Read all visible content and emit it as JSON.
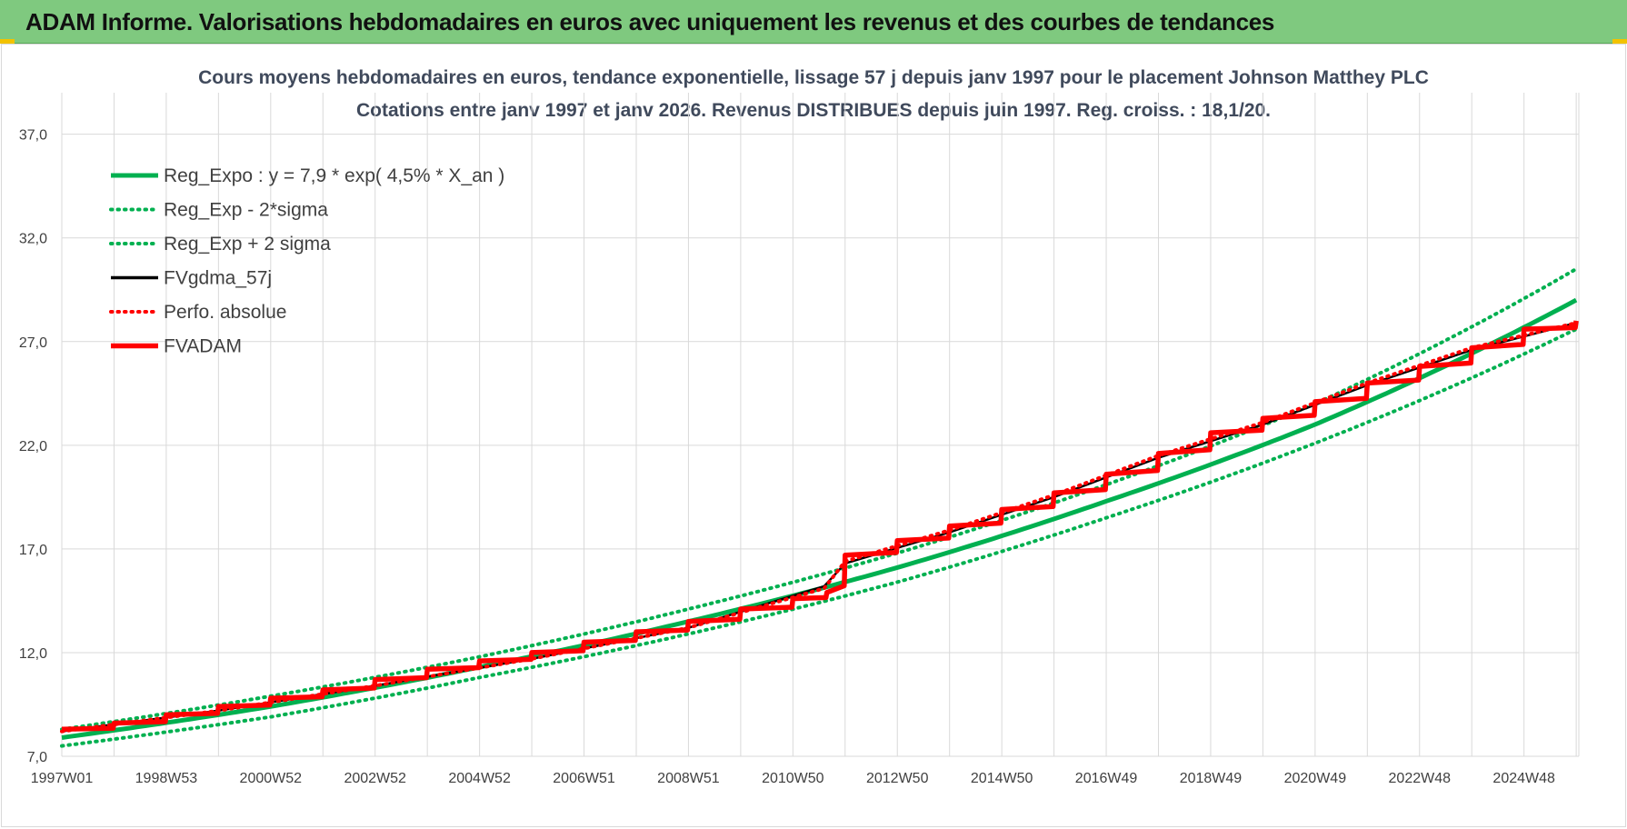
{
  "header": {
    "title": "ADAM Informe. Valorisations hebdomadaires en euros avec uniquement les revenus et des courbes de tendances"
  },
  "colors": {
    "banner": "#7fc97f",
    "green": "#00b050",
    "black": "#000000",
    "red": "#ff0000",
    "grid": "#d9d9d9"
  },
  "chart_data": {
    "type": "line",
    "title_line1": "Cours moyens hebdomadaires en euros, tendance exponentielle, lissage 57 j depuis janv 1997  pour le  placement Johnson Matthey PLC",
    "title_line2": "Cotations entre janv 1997 et janv 2026. Revenus DISTRIBUES depuis juin 1997. Reg. croiss. : 18,1/20.",
    "xlabel": "",
    "ylabel": "",
    "ylim": [
      7,
      39
    ],
    "y_ticks": [
      "7,0",
      "12,0",
      "17,0",
      "22,0",
      "27,0",
      "32,0",
      "37,0"
    ],
    "x_ticks": [
      "1997W01",
      "1998W53",
      "2000W52",
      "2002W52",
      "2004W52",
      "2006W51",
      "2008W51",
      "2010W50",
      "2012W50",
      "2014W50",
      "2016W49",
      "2018W49",
      "2020W49",
      "2022W48",
      "2024W48"
    ],
    "x_tick_years": [
      1997.0,
      1999.0,
      2001.0,
      2003.0,
      2005.0,
      2007.0,
      2009.0,
      2011.0,
      2013.0,
      2015.0,
      2017.0,
      2019.0,
      2021.0,
      2023.0,
      2025.0
    ],
    "xlim": [
      1997.0,
      2026.05
    ],
    "grid": true,
    "legend_position": "top-left",
    "series": [
      {
        "name": "Reg_Expo : y = 7,9 * exp( 4,5% *  X_an )",
        "style": "solid",
        "color": "#00b050",
        "x": [
          1997,
          2001,
          2005,
          2009,
          2013,
          2017,
          2021,
          2026
        ],
        "y": [
          7.9,
          9.4,
          11.3,
          13.5,
          16.1,
          19.3,
          23.0,
          29.0
        ]
      },
      {
        "name": "Reg_Exp - 2*sigma",
        "style": "dotted",
        "color": "#00b050",
        "x": [
          1997,
          2001,
          2005,
          2009,
          2013,
          2017,
          2021,
          2026
        ],
        "y": [
          7.5,
          8.9,
          10.8,
          12.9,
          15.4,
          18.5,
          22.1,
          27.6
        ]
      },
      {
        "name": "Reg_Exp + 2 sigma",
        "style": "dotted",
        "color": "#00b050",
        "x": [
          1997,
          2001,
          2005,
          2009,
          2013,
          2017,
          2021,
          2026
        ],
        "y": [
          8.3,
          9.9,
          11.8,
          14.1,
          16.8,
          20.1,
          24.0,
          30.5
        ]
      },
      {
        "name": "FVgdma_57j",
        "style": "solid",
        "color": "#000000",
        "x": [
          1997,
          2000,
          2003,
          2006,
          2009,
          2011.6,
          2012,
          2014,
          2016,
          2018,
          2020,
          2022,
          2024,
          2026
        ],
        "y": [
          8.2,
          9.2,
          10.4,
          11.7,
          13.2,
          15.2,
          16.3,
          17.8,
          19.5,
          21.4,
          23.0,
          24.9,
          26.6,
          27.9
        ]
      },
      {
        "name": "Perfo. absolue",
        "style": "dotted",
        "color": "#ff0000",
        "x": [
          1997,
          2000,
          2003,
          2006,
          2009,
          2011.6,
          2012,
          2014,
          2016,
          2018,
          2020,
          2022,
          2024,
          2026
        ],
        "y": [
          8.2,
          9.2,
          10.4,
          11.7,
          13.2,
          15.1,
          16.4,
          17.9,
          19.6,
          21.5,
          23.1,
          25.0,
          26.7,
          27.9
        ]
      },
      {
        "name": "FVADAM",
        "style": "solid-thick",
        "color": "#ff0000",
        "x": [
          1997,
          1998,
          1999,
          2000,
          2001,
          2002,
          2003,
          2004,
          2005,
          2006,
          2007,
          2008,
          2009,
          2010,
          2011,
          2011.65,
          2012,
          2013,
          2014,
          2015,
          2016,
          2017,
          2018,
          2019,
          2020,
          2021,
          2022,
          2023,
          2024,
          2025,
          2026
        ],
        "y": [
          8.3,
          8.6,
          9.0,
          9.4,
          9.8,
          10.2,
          10.7,
          11.2,
          11.6,
          12.0,
          12.5,
          13.0,
          13.5,
          14.1,
          14.6,
          14.9,
          16.7,
          17.4,
          18.1,
          18.9,
          19.7,
          20.6,
          21.6,
          22.6,
          23.3,
          24.1,
          25.0,
          25.8,
          26.7,
          27.6,
          28.0
        ]
      }
    ]
  }
}
